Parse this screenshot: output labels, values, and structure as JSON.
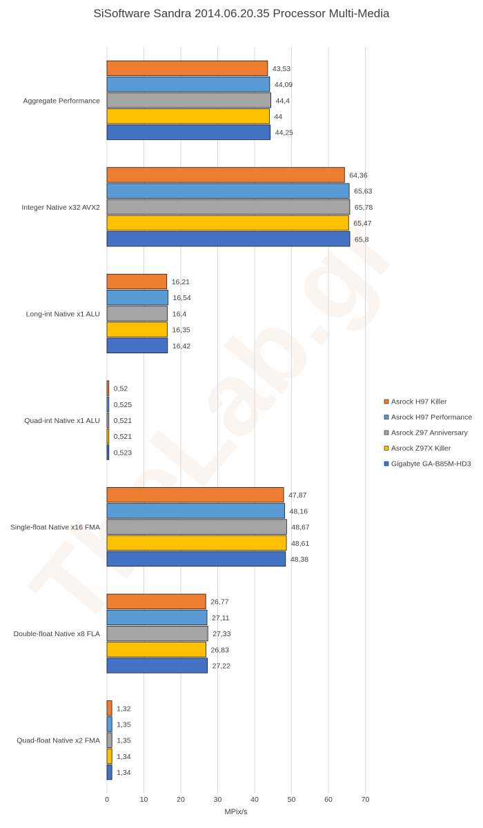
{
  "chart_data": {
    "type": "bar",
    "orientation": "horizontal",
    "title": "SiSoftware Sandra 2014.06.20.35 Processor Multi-Media",
    "xlabel": "MPix/s",
    "ylabel": "",
    "xlim": [
      0,
      70
    ],
    "xticks": [
      "0",
      "10",
      "20",
      "30",
      "40",
      "50",
      "60",
      "70"
    ],
    "grid": true,
    "legend_position": "right",
    "categories": [
      "Aggregate Performance",
      "Integer Native x32 AVX2",
      "Long-int Native x1 ALU",
      "Quad-int Native x1 ALU",
      "Single-float Native x16 FMA",
      "Double-float Native x8 FLA",
      "Quad-float Native x2 FMA"
    ],
    "series": [
      {
        "name": "Asrock H97 Killer",
        "color": "#ED7D31",
        "values": [
          43.53,
          64.36,
          16.21,
          0.52,
          47.87,
          26.77,
          1.32
        ],
        "labels": [
          "43,53",
          "64,36",
          "16,21",
          "0,52",
          "47,87",
          "26,77",
          "1,32"
        ]
      },
      {
        "name": "Asrock H97 Performance",
        "color": "#5B9BD5",
        "values": [
          44.09,
          65.63,
          16.54,
          0.525,
          48.16,
          27.11,
          1.35
        ],
        "labels": [
          "44,09",
          "65,63",
          "16,54",
          "0,525",
          "48,16",
          "27,11",
          "1,35"
        ]
      },
      {
        "name": "Asrock Z97 Anniversary",
        "color": "#A5A5A5",
        "values": [
          44.4,
          65.78,
          16.4,
          0.521,
          48.67,
          27.33,
          1.35
        ],
        "labels": [
          "44,4",
          "65,78",
          "16,4",
          "0,521",
          "48,67",
          "27,33",
          "1,35"
        ]
      },
      {
        "name": "Asrock Z97X Killer",
        "color": "#FFC000",
        "values": [
          44,
          65.47,
          16.35,
          0.521,
          48.61,
          26.83,
          1.34
        ],
        "labels": [
          "44",
          "65,47",
          "16,35",
          "0,521",
          "48,61",
          "26,83",
          "1,34"
        ]
      },
      {
        "name": "Gigabyte GA-B85M-HD3",
        "color": "#4472C4",
        "values": [
          44.25,
          65.8,
          16.42,
          0.523,
          48.38,
          27.22,
          1.34
        ],
        "labels": [
          "44,25",
          "65,8",
          "16,42",
          "0,523",
          "48,38",
          "27,22",
          "1,34"
        ]
      }
    ]
  }
}
